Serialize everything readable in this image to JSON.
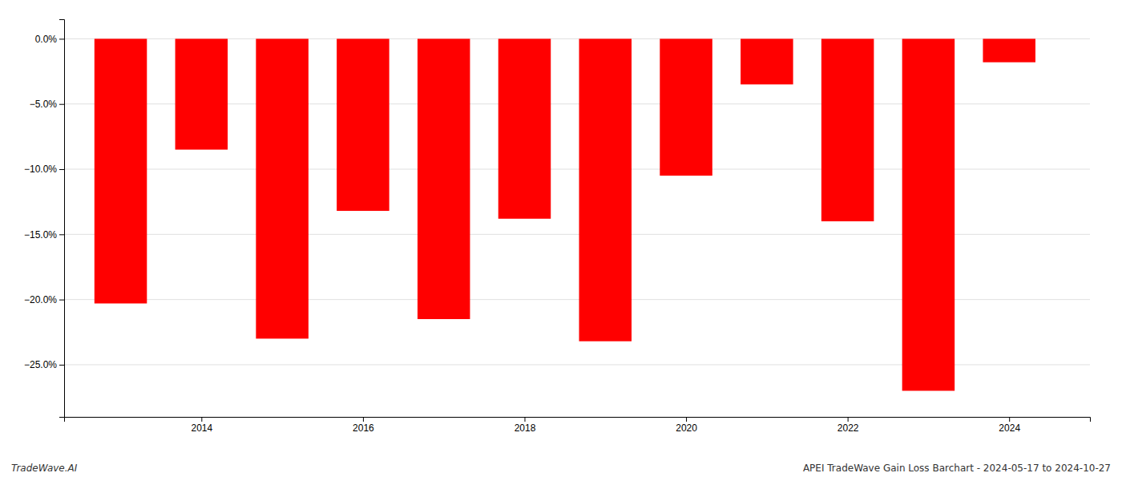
{
  "chart_data": {
    "type": "bar",
    "x": [
      2013,
      2014,
      2015,
      2016,
      2017,
      2018,
      2019,
      2020,
      2021,
      2022,
      2023,
      2024
    ],
    "values": [
      -20.3,
      -8.5,
      -23.0,
      -13.2,
      -21.5,
      -13.8,
      -23.2,
      -10.5,
      -3.5,
      -14.0,
      -27.0,
      -1.8
    ],
    "color": "#ff0000",
    "xlim": [
      2012.3,
      2025.0
    ],
    "xticks": [
      2014,
      2016,
      2018,
      2020,
      2022,
      2024
    ],
    "ylim": [
      -29,
      1.5
    ],
    "yticks": [
      {
        "value": 0.0,
        "label": "0.0%"
      },
      {
        "value": -5.0,
        "label": "−5.0%"
      },
      {
        "value": -10.0,
        "label": "−10.0%"
      },
      {
        "value": -15.0,
        "label": "−15.0%"
      },
      {
        "value": -20.0,
        "label": "−20.0%"
      },
      {
        "value": -25.0,
        "label": "−25.0%"
      }
    ],
    "grid": true,
    "annotations": [
      "TradeWave.AI",
      "APEI TradeWave Gain Loss Barchart - 2024-05-17 to 2024-10-27"
    ]
  }
}
